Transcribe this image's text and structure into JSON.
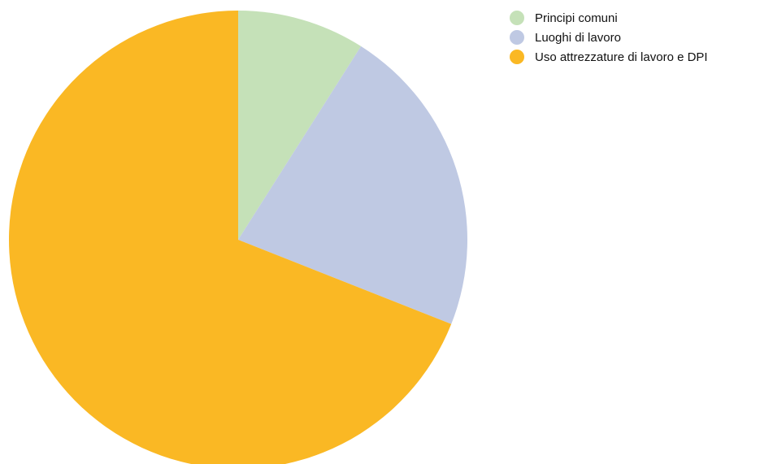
{
  "chart_data": {
    "type": "pie",
    "title": "",
    "slices": [
      {
        "label": "Principi comuni",
        "value": 9,
        "color": "#c5e1b8"
      },
      {
        "label": "Luoghi di lavoro",
        "value": 22,
        "color": "#bfc9e3"
      },
      {
        "label": "Uso attrezzature di lavoro e DPI",
        "value": 69,
        "color": "#fab824"
      }
    ],
    "start_angle": "12 o'clock",
    "direction": "clockwise",
    "legend": {
      "position": "top-right",
      "marker": "circle"
    }
  }
}
